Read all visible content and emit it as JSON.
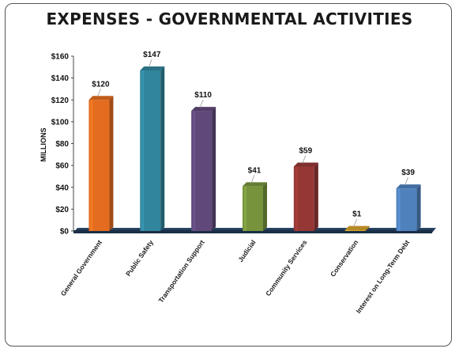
{
  "chart_data": {
    "type": "bar",
    "title": "EXPENSES - GOVERNMENTAL ACTIVITIES",
    "xlabel": "",
    "ylabel": "MILLIONS",
    "ylim": [
      0,
      160
    ],
    "yticks": [
      "$0",
      "$20",
      "$40",
      "$60",
      "$80",
      "$100",
      "$120",
      "$140",
      "$160"
    ],
    "categories": [
      "General Government",
      "Public Safety",
      "Transportation Support",
      "Judicial",
      "Community Services",
      "Conservation",
      "Interest on Long-Term Debt"
    ],
    "values": [
      120,
      147,
      110,
      41,
      59,
      1,
      39
    ],
    "data_labels": [
      "$120",
      "$147",
      "$110",
      "$41",
      "$59",
      "$1",
      "$39"
    ],
    "colors": [
      "#e46c1f",
      "#31859c",
      "#60497a",
      "#77933c",
      "#953735",
      "#d6a22b",
      "#4f81bd"
    ],
    "grid": false,
    "legend": "none"
  }
}
